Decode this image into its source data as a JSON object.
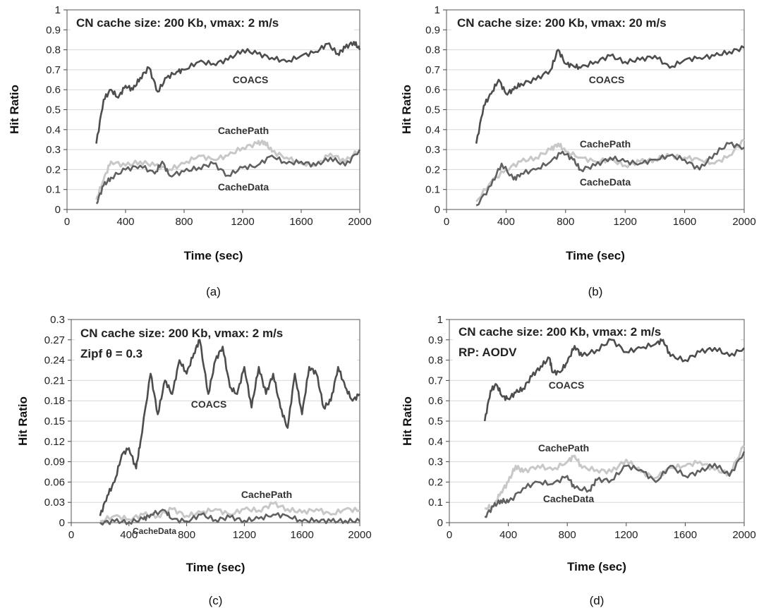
{
  "chart_data": [
    {
      "type": "line",
      "caption": "(a)",
      "annotations": [
        "CN cache size: 200 Kb, vmax: 2 m/s"
      ],
      "xlabel": "Time (sec)",
      "ylabel": "Hit Ratio",
      "xlim": [
        0,
        2000
      ],
      "ylim": [
        0,
        1
      ],
      "xticks": [
        "0",
        "400",
        "800",
        "1200",
        "1600",
        "2000"
      ],
      "yticks": [
        "0",
        "0.1",
        "0.2",
        "0.3",
        "0.4",
        "0.5",
        "0.6",
        "0.7",
        "0.8",
        "0.9",
        "1"
      ],
      "grid": true,
      "series": [
        {
          "name": "COACS",
          "color": "#4d4d4d",
          "x": [
            200,
            250,
            300,
            350,
            400,
            450,
            500,
            560,
            620,
            680,
            750,
            800,
            900,
            1000,
            1100,
            1200,
            1300,
            1400,
            1500,
            1600,
            1700,
            1780,
            1850,
            1900,
            1960,
            2000
          ],
          "y": [
            0.33,
            0.55,
            0.6,
            0.56,
            0.62,
            0.6,
            0.66,
            0.71,
            0.59,
            0.66,
            0.69,
            0.7,
            0.74,
            0.73,
            0.75,
            0.8,
            0.78,
            0.76,
            0.74,
            0.77,
            0.79,
            0.83,
            0.78,
            0.81,
            0.84,
            0.8
          ]
        },
        {
          "name": "CachePath",
          "color": "#c8c8c8",
          "x": [
            200,
            250,
            300,
            400,
            500,
            600,
            700,
            800,
            900,
            1000,
            1100,
            1200,
            1300,
            1350,
            1400,
            1500,
            1600,
            1700,
            1800,
            1900,
            2000
          ],
          "y": [
            0.05,
            0.15,
            0.24,
            0.22,
            0.24,
            0.22,
            0.2,
            0.23,
            0.27,
            0.25,
            0.27,
            0.31,
            0.33,
            0.34,
            0.29,
            0.26,
            0.23,
            0.22,
            0.28,
            0.24,
            0.3
          ]
        },
        {
          "name": "CacheData",
          "color": "#606060",
          "x": [
            200,
            250,
            300,
            400,
            500,
            600,
            650,
            700,
            800,
            900,
            1000,
            1100,
            1200,
            1300,
            1400,
            1500,
            1600,
            1700,
            1800,
            1900,
            2000
          ],
          "y": [
            0.03,
            0.12,
            0.16,
            0.2,
            0.22,
            0.18,
            0.24,
            0.17,
            0.19,
            0.21,
            0.23,
            0.17,
            0.21,
            0.22,
            0.27,
            0.23,
            0.24,
            0.22,
            0.26,
            0.22,
            0.3
          ]
        }
      ]
    },
    {
      "type": "line",
      "caption": "(b)",
      "annotations": [
        "CN cache size: 200 Kb, vmax: 20 m/s"
      ],
      "xlabel": "Time (sec)",
      "ylabel": "Hit Ratio",
      "xlim": [
        0,
        2000
      ],
      "ylim": [
        0,
        1
      ],
      "xticks": [
        "0",
        "400",
        "800",
        "1200",
        "1600",
        "2000"
      ],
      "yticks": [
        "0",
        "0.1",
        "0.2",
        "0.3",
        "0.4",
        "0.5",
        "0.6",
        "0.7",
        "0.8",
        "0.9",
        "1"
      ],
      "grid": true,
      "series": [
        {
          "name": "COACS",
          "color": "#4d4d4d",
          "x": [
            200,
            250,
            300,
            350,
            400,
            450,
            500,
            600,
            700,
            750,
            800,
            850,
            900,
            1000,
            1100,
            1200,
            1300,
            1400,
            1500,
            1600,
            1700,
            1800,
            1900,
            2000
          ],
          "y": [
            0.33,
            0.52,
            0.58,
            0.65,
            0.58,
            0.6,
            0.63,
            0.65,
            0.7,
            0.8,
            0.73,
            0.72,
            0.71,
            0.74,
            0.77,
            0.74,
            0.75,
            0.77,
            0.71,
            0.75,
            0.76,
            0.77,
            0.79,
            0.81
          ]
        },
        {
          "name": "CachePath",
          "color": "#c8c8c8",
          "x": [
            200,
            300,
            400,
            500,
            600,
            700,
            750,
            800,
            900,
            1000,
            1100,
            1200,
            1300,
            1400,
            1500,
            1600,
            1700,
            1800,
            1900,
            2000
          ],
          "y": [
            0.04,
            0.14,
            0.2,
            0.24,
            0.26,
            0.3,
            0.33,
            0.29,
            0.26,
            0.24,
            0.25,
            0.22,
            0.24,
            0.25,
            0.27,
            0.26,
            0.25,
            0.23,
            0.27,
            0.35
          ]
        },
        {
          "name": "CacheData",
          "color": "#606060",
          "x": [
            200,
            300,
            370,
            450,
            500,
            600,
            700,
            780,
            850,
            900,
            1000,
            1100,
            1200,
            1300,
            1400,
            1500,
            1600,
            1700,
            1800,
            1900,
            2000
          ],
          "y": [
            0.02,
            0.12,
            0.23,
            0.15,
            0.18,
            0.2,
            0.24,
            0.29,
            0.25,
            0.2,
            0.22,
            0.26,
            0.24,
            0.23,
            0.25,
            0.27,
            0.25,
            0.2,
            0.28,
            0.33,
            0.31
          ]
        }
      ]
    },
    {
      "type": "line",
      "caption": "(c)",
      "annotations": [
        "CN cache size: 200 Kb, vmax: 2 m/s",
        "Zipf θ = 0.3"
      ],
      "xlabel": "Time (sec)",
      "ylabel": "Hit Ratio",
      "xlim": [
        0,
        2000
      ],
      "ylim": [
        0,
        0.3
      ],
      "xticks": [
        "0",
        "400",
        "800",
        "1200",
        "1600",
        "2000"
      ],
      "yticks": [
        "0",
        "0.03",
        "0.06",
        "0.09",
        "0.12",
        "0.15",
        "0.18",
        "0.21",
        "0.24",
        "0.27",
        "0.3"
      ],
      "grid": true,
      "series": [
        {
          "name": "COACS",
          "color": "#4d4d4d",
          "x": [
            200,
            250,
            300,
            350,
            400,
            450,
            480,
            550,
            600,
            650,
            700,
            750,
            800,
            850,
            890,
            950,
            1000,
            1050,
            1100,
            1150,
            1200,
            1250,
            1300,
            1350,
            1400,
            1450,
            1500,
            1550,
            1600,
            1650,
            1700,
            1750,
            1800,
            1850,
            1900,
            1950,
            2000
          ],
          "y": [
            0.01,
            0.04,
            0.06,
            0.1,
            0.11,
            0.08,
            0.12,
            0.22,
            0.16,
            0.21,
            0.19,
            0.24,
            0.22,
            0.25,
            0.27,
            0.19,
            0.24,
            0.26,
            0.2,
            0.19,
            0.23,
            0.17,
            0.23,
            0.19,
            0.22,
            0.17,
            0.14,
            0.22,
            0.16,
            0.23,
            0.22,
            0.17,
            0.18,
            0.23,
            0.2,
            0.18,
            0.19
          ]
        },
        {
          "name": "CachePath",
          "color": "#c8c8c8",
          "x": [
            200,
            300,
            400,
            500,
            600,
            700,
            800,
            900,
            1000,
            1100,
            1200,
            1300,
            1400,
            1500,
            1600,
            1700,
            1800,
            1900,
            2000
          ],
          "y": [
            0.002,
            0.01,
            0.005,
            0.012,
            0.01,
            0.02,
            0.01,
            0.015,
            0.02,
            0.012,
            0.02,
            0.018,
            0.028,
            0.02,
            0.015,
            0.02,
            0.012,
            0.02,
            0.018
          ]
        },
        {
          "name": "CacheData",
          "color": "#606060",
          "x": [
            200,
            300,
            400,
            500,
            550,
            650,
            700,
            800,
            900,
            1000,
            1100,
            1200,
            1300,
            1400,
            1500,
            1600,
            1700,
            1800,
            1900,
            2000
          ],
          "y": [
            0,
            0.002,
            0.001,
            0.005,
            0.012,
            0.018,
            0.005,
            0.002,
            0.012,
            0.004,
            0.008,
            0.003,
            0.006,
            0.012,
            0.01,
            0.002,
            0.004,
            0.002,
            0.003,
            0.002
          ]
        }
      ]
    },
    {
      "type": "line",
      "caption": "(d)",
      "annotations": [
        "CN cache size: 200 Kb, vmax: 2 m/s",
        "RP: AODV"
      ],
      "xlabel": "Time (sec)",
      "ylabel": "Hit Ratio",
      "xlim": [
        0,
        2000
      ],
      "ylim": [
        0,
        1
      ],
      "xticks": [
        "0",
        "400",
        "800",
        "1200",
        "1600",
        "2000"
      ],
      "yticks": [
        "0",
        "0.1",
        "0.2",
        "0.3",
        "0.4",
        "0.5",
        "0.6",
        "0.7",
        "0.8",
        "0.9",
        "1"
      ],
      "grid": true,
      "series": [
        {
          "name": "COACS",
          "color": "#4d4d4d",
          "x": [
            240,
            280,
            320,
            360,
            400,
            450,
            500,
            560,
            620,
            680,
            700,
            750,
            800,
            850,
            900,
            1000,
            1100,
            1200,
            1300,
            1400,
            1450,
            1500,
            1600,
            1700,
            1800,
            1900,
            2000
          ],
          "y": [
            0.5,
            0.65,
            0.68,
            0.62,
            0.61,
            0.64,
            0.66,
            0.72,
            0.77,
            0.81,
            0.74,
            0.74,
            0.79,
            0.87,
            0.82,
            0.85,
            0.9,
            0.84,
            0.86,
            0.88,
            0.9,
            0.82,
            0.8,
            0.84,
            0.86,
            0.82,
            0.86
          ]
        },
        {
          "name": "CachePath",
          "color": "#c8c8c8",
          "x": [
            240,
            300,
            350,
            400,
            450,
            500,
            600,
            700,
            800,
            850,
            900,
            1000,
            1100,
            1200,
            1300,
            1400,
            1500,
            1600,
            1700,
            1800,
            1900,
            2000
          ],
          "y": [
            0.07,
            0.08,
            0.15,
            0.2,
            0.28,
            0.25,
            0.28,
            0.26,
            0.3,
            0.33,
            0.27,
            0.26,
            0.25,
            0.31,
            0.25,
            0.22,
            0.27,
            0.28,
            0.3,
            0.26,
            0.24,
            0.38
          ]
        },
        {
          "name": "CacheData",
          "color": "#606060",
          "x": [
            240,
            300,
            350,
            400,
            500,
            600,
            700,
            800,
            850,
            950,
            1000,
            1100,
            1200,
            1300,
            1400,
            1500,
            1600,
            1700,
            1800,
            1900,
            2000
          ],
          "y": [
            0.03,
            0.08,
            0.11,
            0.1,
            0.17,
            0.2,
            0.19,
            0.23,
            0.17,
            0.16,
            0.21,
            0.21,
            0.28,
            0.26,
            0.2,
            0.28,
            0.23,
            0.25,
            0.29,
            0.23,
            0.35
          ]
        }
      ]
    }
  ]
}
